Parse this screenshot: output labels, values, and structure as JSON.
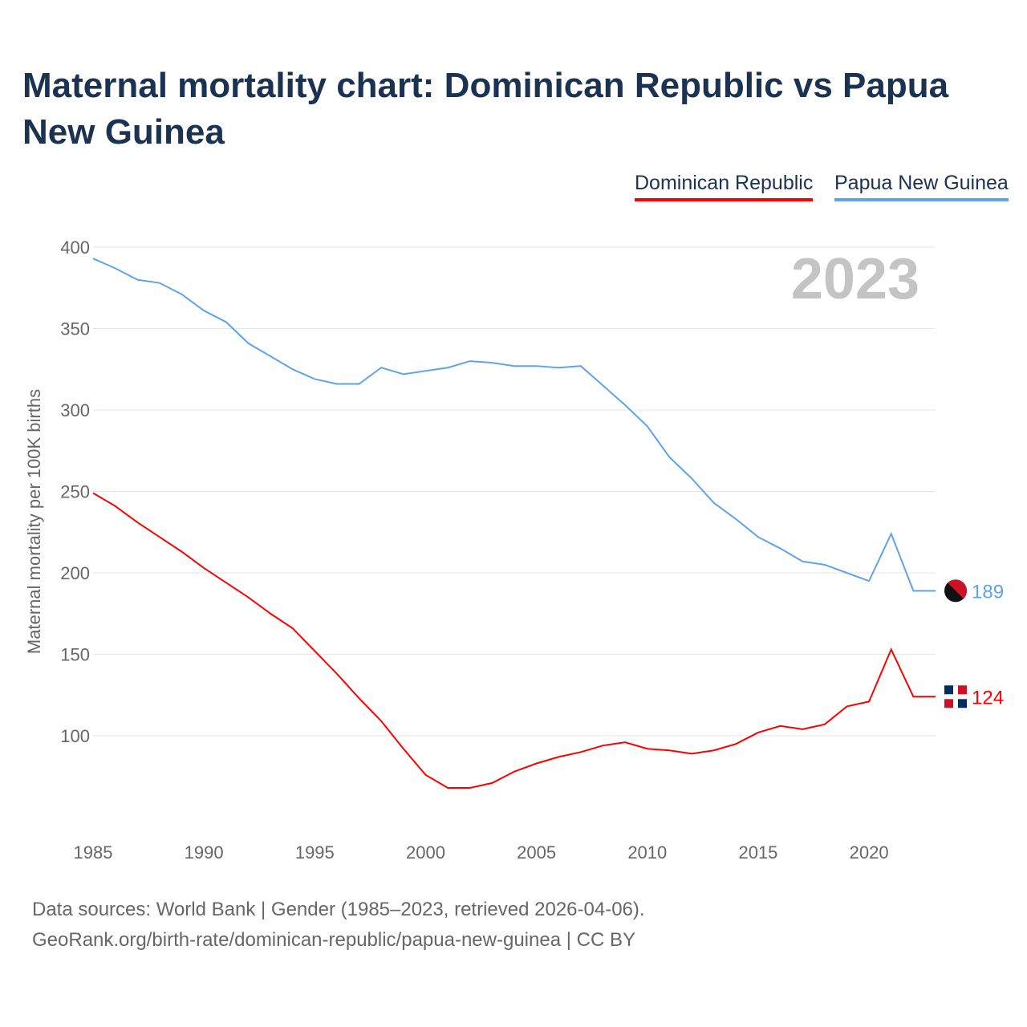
{
  "title": "Maternal mortality chart: Dominican Republic vs Papua New Guinea",
  "footer": {
    "line1": "Data sources: World Bank | Gender (1985–2023, retrieved 2026-04-06).",
    "line2": "GeoRank.org/birth-rate/dominican-republic/papua-new-guinea | CC BY"
  },
  "chart_data": {
    "type": "line",
    "title": "Maternal mortality chart: Dominican Republic vs Papua New Guinea",
    "xlabel": "",
    "ylabel": "Maternal mortality per 100K births",
    "year_label": "2023",
    "xlim": [
      1985,
      2023
    ],
    "ylim": [
      40,
      400
    ],
    "xticks": [
      1985,
      1990,
      1995,
      2000,
      2005,
      2010,
      2015,
      2020
    ],
    "yticks": [
      100,
      150,
      200,
      250,
      300,
      350,
      400
    ],
    "grid": true,
    "legend_position": "top-right",
    "x": [
      1985,
      1986,
      1987,
      1988,
      1989,
      1990,
      1991,
      1992,
      1993,
      1994,
      1995,
      1996,
      1997,
      1998,
      1999,
      2000,
      2001,
      2002,
      2003,
      2004,
      2005,
      2006,
      2007,
      2008,
      2009,
      2010,
      2011,
      2012,
      2013,
      2014,
      2015,
      2016,
      2017,
      2018,
      2019,
      2020,
      2021,
      2022,
      2023
    ],
    "series": [
      {
        "name": "Dominican Republic",
        "color": "#ff0000",
        "end_label": "124",
        "values": [
          249,
          241,
          231,
          222,
          213,
          203,
          194,
          185,
          175,
          166,
          152,
          138,
          123,
          109,
          92,
          76,
          68,
          68,
          71,
          78,
          83,
          87,
          90,
          94,
          96,
          92,
          91,
          89,
          91,
          95,
          102,
          106,
          104,
          107,
          118,
          121,
          153,
          124,
          124
        ]
      },
      {
        "name": "Papua New Guinea",
        "color": "#5fa3e8",
        "end_label": "189",
        "values": [
          393,
          387,
          380,
          378,
          371,
          361,
          354,
          341,
          333,
          325,
          319,
          316,
          316,
          326,
          322,
          324,
          326,
          330,
          329,
          327,
          327,
          326,
          327,
          315,
          303,
          290,
          271,
          258,
          243,
          233,
          222,
          215,
          207,
          205,
          200,
          195,
          224,
          189,
          189
        ]
      }
    ]
  }
}
